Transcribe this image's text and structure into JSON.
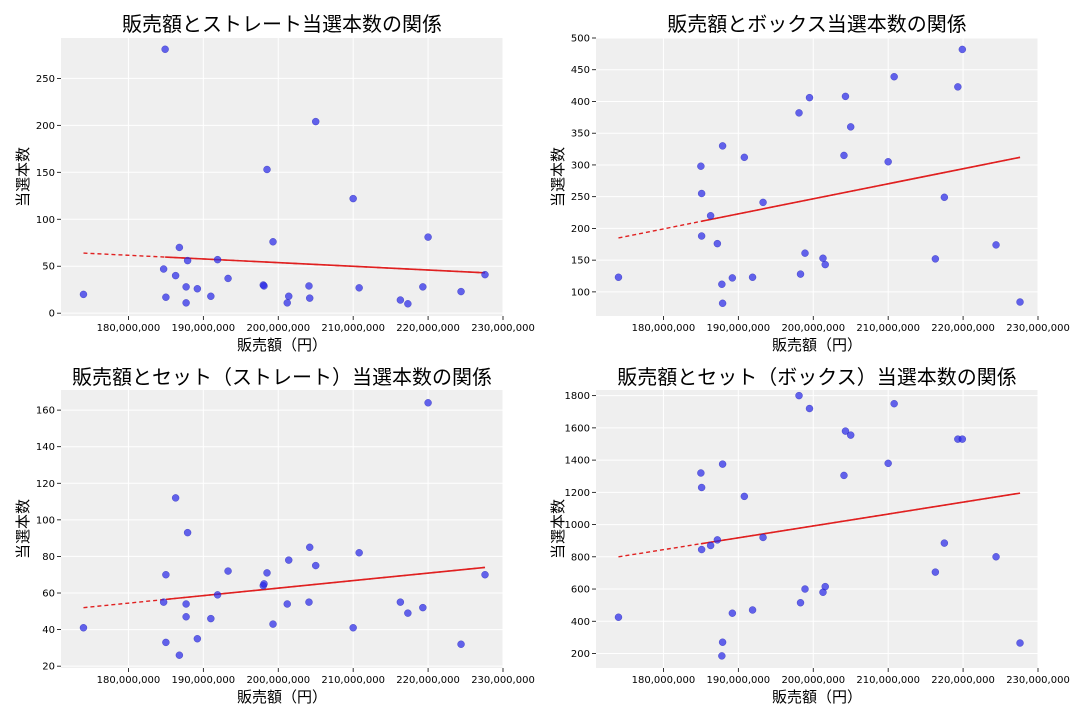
{
  "colors": {
    "point": "#2a2ae8",
    "trend": "#e02020",
    "panel_bg": "#efefef",
    "grid": "#ffffff"
  },
  "chart_data": [
    {
      "type": "scatter",
      "title": "販売額とストレート当選本数の関係",
      "xlabel": "販売額（円）",
      "ylabel": "当選本数",
      "xlim": [
        171000000,
        230000000
      ],
      "ylim": [
        -3,
        293
      ],
      "xticks": [
        180000000,
        190000000,
        200000000,
        210000000,
        220000000,
        230000000
      ],
      "xtick_labels": [
        "180,000,000",
        "190,000,000",
        "200,000,000",
        "210,000,000",
        "220,000,000",
        "230,000,000"
      ],
      "yticks": [
        0,
        50,
        100,
        150,
        200,
        250
      ],
      "ytick_labels": [
        "0",
        "50",
        "100",
        "150",
        "200",
        "250"
      ],
      "points": [
        [
          174000000,
          20
        ],
        [
          184700000,
          47
        ],
        [
          184900000,
          281
        ],
        [
          185000000,
          17
        ],
        [
          186300000,
          40
        ],
        [
          186800000,
          70
        ],
        [
          187700000,
          11
        ],
        [
          187700000,
          28
        ],
        [
          187900000,
          56
        ],
        [
          189200000,
          26
        ],
        [
          191000000,
          18
        ],
        [
          191900000,
          57
        ],
        [
          193300000,
          37
        ],
        [
          198000000,
          30
        ],
        [
          198100000,
          29
        ],
        [
          198500000,
          153
        ],
        [
          199300000,
          76
        ],
        [
          201200000,
          11
        ],
        [
          201400000,
          18
        ],
        [
          204100000,
          29
        ],
        [
          204200000,
          16
        ],
        [
          205000000,
          204
        ],
        [
          210000000,
          122
        ],
        [
          210800000,
          27
        ],
        [
          216300000,
          14
        ],
        [
          217300000,
          10
        ],
        [
          219300000,
          28
        ],
        [
          220000000,
          81
        ],
        [
          224400000,
          23
        ],
        [
          227600000,
          41
        ]
      ],
      "trend": [
        [
          174000000,
          64
        ],
        [
          227600000,
          43
        ]
      ],
      "trend_split": 184900000
    },
    {
      "type": "scatter",
      "title": "販売額とボックス当選本数の関係",
      "xlabel": "販売額（円）",
      "ylabel": "当選本数",
      "xlim": [
        171000000,
        230000000
      ],
      "ylim": [
        62,
        500
      ],
      "xticks": [
        180000000,
        190000000,
        200000000,
        210000000,
        220000000,
        230000000
      ],
      "xtick_labels": [
        "180,000,000",
        "190,000,000",
        "200,000,000",
        "210,000,000",
        "220,000,000",
        "230,000,000"
      ],
      "yticks": [
        100,
        150,
        200,
        250,
        300,
        350,
        400,
        450,
        500
      ],
      "ytick_labels": [
        "100",
        "150",
        "200",
        "250",
        "300",
        "350",
        "400",
        "450",
        "500"
      ],
      "points": [
        [
          174000000,
          123
        ],
        [
          185000000,
          298
        ],
        [
          185100000,
          255
        ],
        [
          185100000,
          188
        ],
        [
          186300000,
          220
        ],
        [
          187200000,
          176
        ],
        [
          187800000,
          112
        ],
        [
          187900000,
          330
        ],
        [
          187900000,
          82
        ],
        [
          189200000,
          122
        ],
        [
          190800000,
          312
        ],
        [
          191900000,
          123
        ],
        [
          193300000,
          241
        ],
        [
          198100000,
          382
        ],
        [
          198300000,
          128
        ],
        [
          198900000,
          161
        ],
        [
          199500000,
          406
        ],
        [
          201300000,
          153
        ],
        [
          201600000,
          143
        ],
        [
          204100000,
          315
        ],
        [
          204300000,
          408
        ],
        [
          205000000,
          360
        ],
        [
          210000000,
          305
        ],
        [
          210800000,
          439
        ],
        [
          216300000,
          152
        ],
        [
          217500000,
          249
        ],
        [
          219300000,
          423
        ],
        [
          219900000,
          482
        ],
        [
          224400000,
          174
        ],
        [
          227600000,
          84
        ]
      ],
      "trend": [
        [
          174000000,
          185
        ],
        [
          227600000,
          312
        ]
      ],
      "trend_split": 185000000
    },
    {
      "type": "scatter",
      "title": "販売額とセット（ストレート）当選本数の関係",
      "xlabel": "販売額（円）",
      "ylabel": "当選本数",
      "xlim": [
        171000000,
        230000000
      ],
      "ylim": [
        19,
        171
      ],
      "xticks": [
        180000000,
        190000000,
        200000000,
        210000000,
        220000000,
        230000000
      ],
      "xtick_labels": [
        "180,000,000",
        "190,000,000",
        "200,000,000",
        "210,000,000",
        "220,000,000",
        "230,000,000"
      ],
      "yticks": [
        20,
        40,
        60,
        80,
        100,
        120,
        140,
        160
      ],
      "ytick_labels": [
        "20",
        "40",
        "60",
        "80",
        "100",
        "120",
        "140",
        "160"
      ],
      "points": [
        [
          174000000,
          41
        ],
        [
          184700000,
          55
        ],
        [
          185000000,
          33
        ],
        [
          185000000,
          70
        ],
        [
          186300000,
          112
        ],
        [
          186800000,
          26
        ],
        [
          187700000,
          47
        ],
        [
          187700000,
          54
        ],
        [
          187900000,
          93
        ],
        [
          189200000,
          35
        ],
        [
          191000000,
          46
        ],
        [
          191900000,
          59
        ],
        [
          193300000,
          72
        ],
        [
          198000000,
          64
        ],
        [
          198100000,
          65
        ],
        [
          198500000,
          71
        ],
        [
          199300000,
          43
        ],
        [
          201200000,
          54
        ],
        [
          201400000,
          78
        ],
        [
          204100000,
          55
        ],
        [
          204200000,
          85
        ],
        [
          205000000,
          75
        ],
        [
          210000000,
          41
        ],
        [
          210800000,
          82
        ],
        [
          216300000,
          55
        ],
        [
          217300000,
          49
        ],
        [
          219300000,
          52
        ],
        [
          220000000,
          164
        ],
        [
          224400000,
          32
        ],
        [
          227600000,
          70
        ]
      ],
      "trend": [
        [
          174000000,
          52
        ],
        [
          227600000,
          74
        ]
      ],
      "trend_split": 185000000
    },
    {
      "type": "scatter",
      "title": "販売額とセット（ボックス）当選本数の関係",
      "xlabel": "販売額（円）",
      "ylabel": "当選本数",
      "xlim": [
        171000000,
        230000000
      ],
      "ylim": [
        110,
        1835
      ],
      "xticks": [
        180000000,
        190000000,
        200000000,
        210000000,
        220000000,
        230000000
      ],
      "xtick_labels": [
        "180,000,000",
        "190,000,000",
        "200,000,000",
        "210,000,000",
        "220,000,000",
        "230,000,000"
      ],
      "yticks": [
        200,
        400,
        600,
        800,
        1000,
        1200,
        1400,
        1600,
        1800
      ],
      "ytick_labels": [
        "200",
        "400",
        "600",
        "800",
        "1000",
        "1200",
        "1400",
        "1600",
        "1800"
      ],
      "points": [
        [
          174000000,
          425
        ],
        [
          185000000,
          1320
        ],
        [
          185100000,
          1230
        ],
        [
          185100000,
          845
        ],
        [
          186300000,
          870
        ],
        [
          187200000,
          905
        ],
        [
          187800000,
          185
        ],
        [
          187900000,
          1375
        ],
        [
          187900000,
          270
        ],
        [
          189200000,
          450
        ],
        [
          190800000,
          1175
        ],
        [
          191900000,
          470
        ],
        [
          193300000,
          920
        ],
        [
          198100000,
          1800
        ],
        [
          198300000,
          515
        ],
        [
          198900000,
          600
        ],
        [
          199500000,
          1720
        ],
        [
          201300000,
          580
        ],
        [
          201600000,
          615
        ],
        [
          204100000,
          1305
        ],
        [
          204300000,
          1580
        ],
        [
          205000000,
          1555
        ],
        [
          210000000,
          1380
        ],
        [
          210800000,
          1750
        ],
        [
          216300000,
          705
        ],
        [
          217500000,
          885
        ],
        [
          219300000,
          1530
        ],
        [
          219900000,
          1530
        ],
        [
          224400000,
          800
        ],
        [
          227600000,
          265
        ]
      ],
      "trend": [
        [
          174000000,
          800
        ],
        [
          227600000,
          1195
        ]
      ],
      "trend_split": 185000000
    }
  ]
}
